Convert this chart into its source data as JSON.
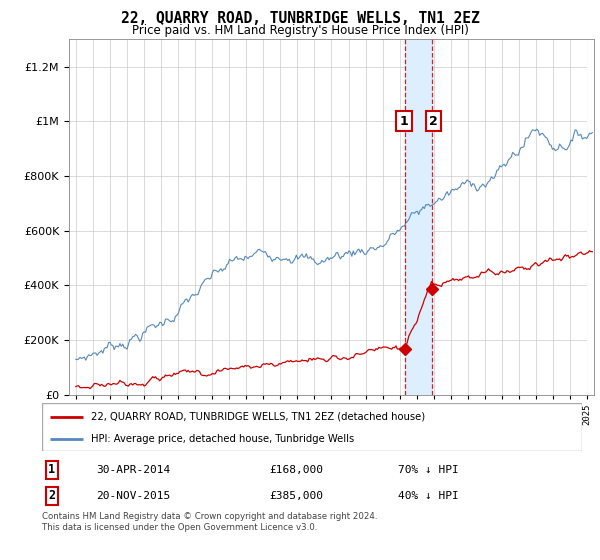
{
  "title": "22, QUARRY ROAD, TUNBRIDGE WELLS, TN1 2EZ",
  "subtitle": "Price paid vs. HM Land Registry's House Price Index (HPI)",
  "legend_entry1": "22, QUARRY ROAD, TUNBRIDGE WELLS, TN1 2EZ (detached house)",
  "legend_entry2": "HPI: Average price, detached house, Tunbridge Wells",
  "transaction1_date": "30-APR-2014",
  "transaction1_price": "£168,000",
  "transaction1_hpi": "70% ↓ HPI",
  "transaction2_date": "20-NOV-2015",
  "transaction2_price": "£385,000",
  "transaction2_hpi": "40% ↓ HPI",
  "footer": "Contains HM Land Registry data © Crown copyright and database right 2024.\nThis data is licensed under the Open Government Licence v3.0.",
  "hpi_color": "#5588bb",
  "price_color": "#cc0000",
  "highlight_color": "#ddeeff",
  "ylim_max": 1300000,
  "transaction1_year": 2014.33,
  "transaction1_value": 168000,
  "transaction2_year": 2015.9,
  "transaction2_value": 385000,
  "xmin": 1994.6,
  "xmax": 2025.4
}
